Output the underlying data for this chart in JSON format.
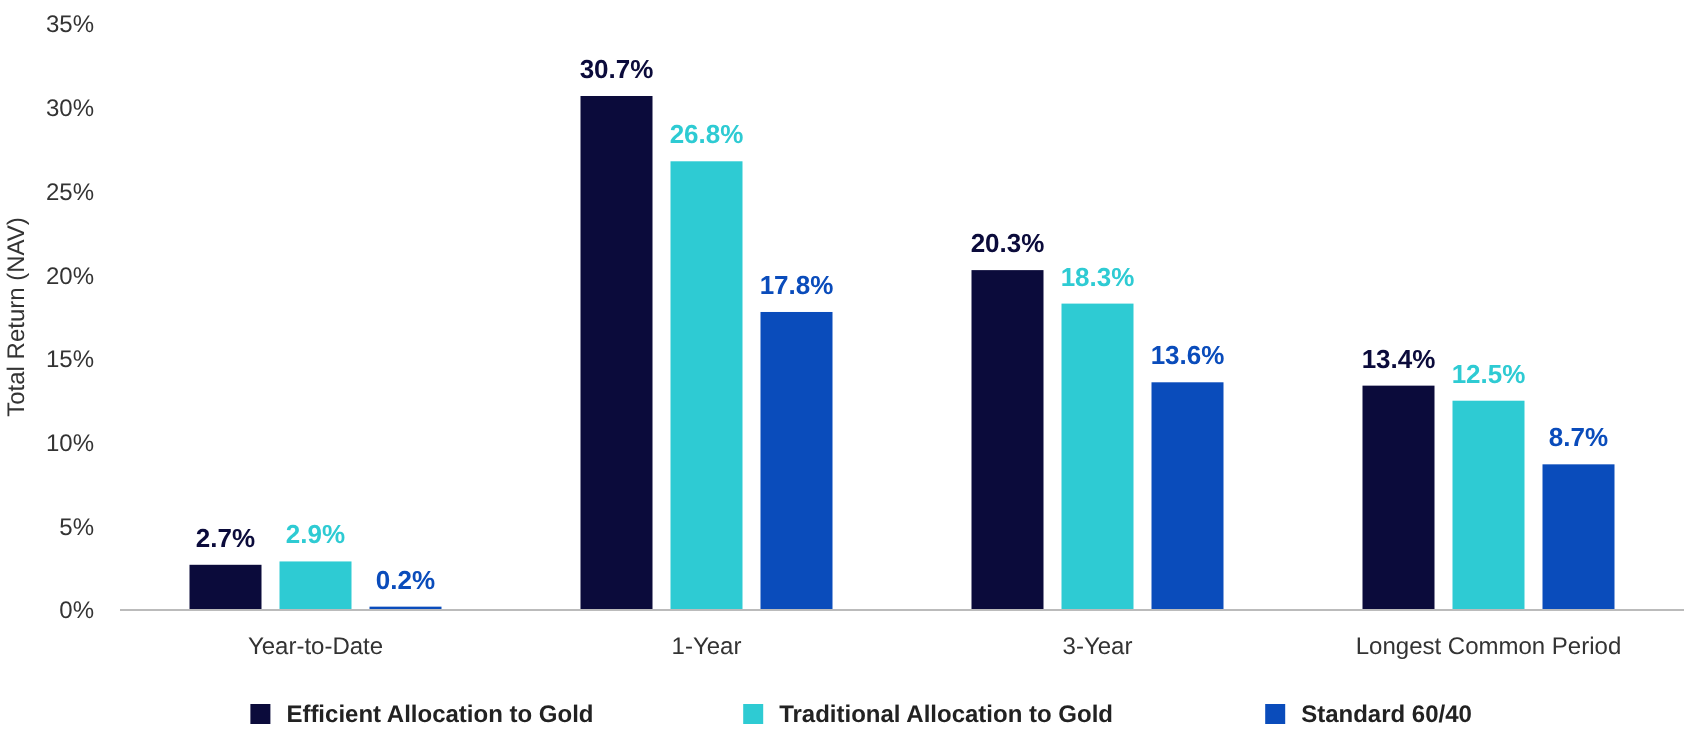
{
  "chart_data": {
    "type": "bar",
    "ylabel": "Total Return (NAV)",
    "categories": [
      "Year-to-Date",
      "1-Year",
      "3-Year",
      "Longest Common Period"
    ],
    "series": [
      {
        "name": "Efficient Allocation to Gold",
        "color": "#0b0b3b",
        "values": [
          2.7,
          30.7,
          20.3,
          13.4
        ],
        "value_labels": [
          "2.7%",
          "30.7%",
          "20.3%",
          "13.4%"
        ]
      },
      {
        "name": "Traditional Allocation to Gold",
        "color": "#2ecbd3",
        "values": [
          2.9,
          26.8,
          18.3,
          12.5
        ],
        "value_labels": [
          "2.9%",
          "26.8%",
          "18.3%",
          "12.5%"
        ]
      },
      {
        "name": "Standard 60/40",
        "color": "#0a4cbb",
        "values": [
          0.2,
          17.8,
          13.6,
          8.7
        ],
        "value_labels": [
          "0.2%",
          "17.8%",
          "13.6%",
          "8.7%"
        ]
      }
    ],
    "ylim": [
      0,
      35
    ],
    "yticks": [
      {
        "value": 0,
        "label": "0%"
      },
      {
        "value": 5,
        "label": "5%"
      },
      {
        "value": 10,
        "label": "10%"
      },
      {
        "value": 15,
        "label": "15%"
      },
      {
        "value": 20,
        "label": "20%"
      },
      {
        "value": 25,
        "label": "25%"
      },
      {
        "value": 30,
        "label": "30%"
      },
      {
        "value": 35,
        "label": "35%"
      }
    ],
    "grid": false,
    "legend": "bottom"
  }
}
